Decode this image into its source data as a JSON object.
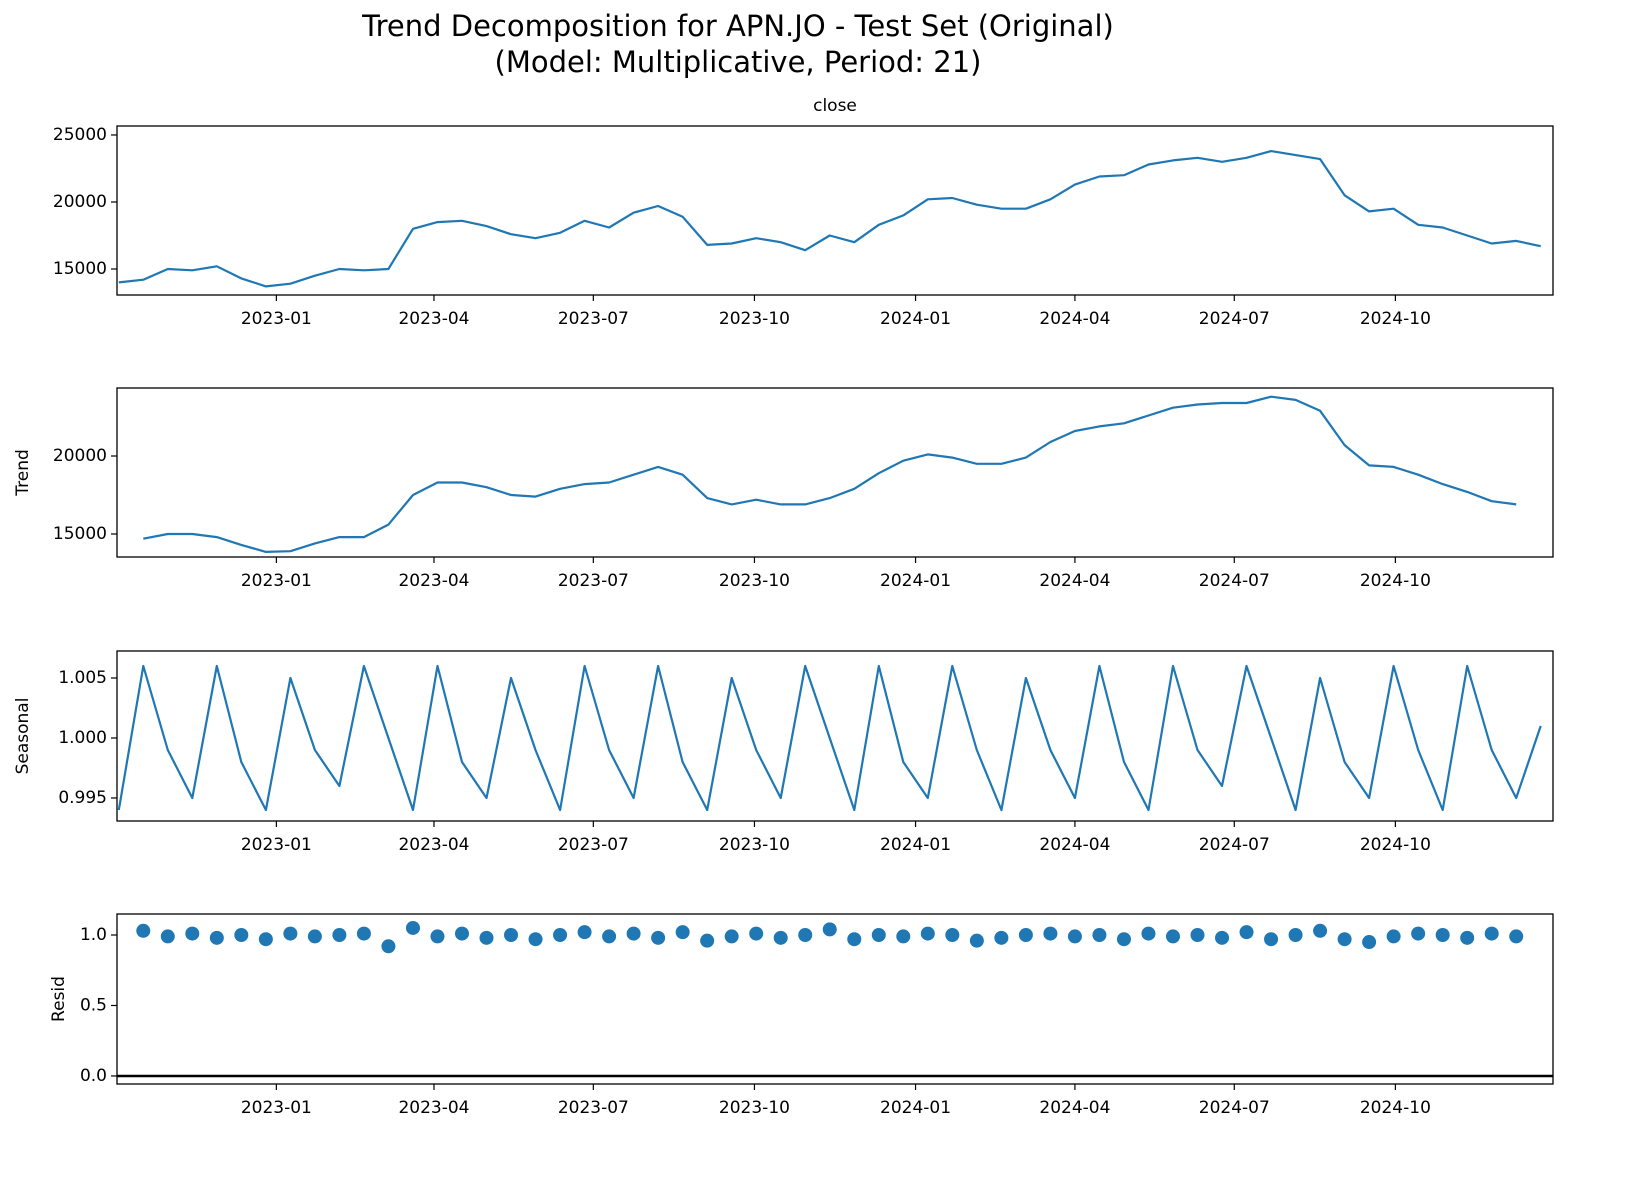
{
  "title": "Trend Decomposition for APN.JO - Test Set (Original)",
  "subtitle": "(Model: Multiplicative, Period: 21)",
  "chart_data": [
    {
      "type": "line",
      "title": "close",
      "color": "#1f77b4",
      "x": [
        "2022-10-03",
        "2022-10-17",
        "2022-10-31",
        "2022-11-14",
        "2022-11-28",
        "2022-12-12",
        "2022-12-26",
        "2023-01-09",
        "2023-01-23",
        "2023-02-06",
        "2023-02-20",
        "2023-03-06",
        "2023-03-20",
        "2023-04-03",
        "2023-04-17",
        "2023-05-01",
        "2023-05-15",
        "2023-05-29",
        "2023-06-12",
        "2023-06-26",
        "2023-07-10",
        "2023-07-24",
        "2023-08-07",
        "2023-08-21",
        "2023-09-04",
        "2023-09-18",
        "2023-10-02",
        "2023-10-16",
        "2023-10-30",
        "2023-11-13",
        "2023-11-27",
        "2023-12-11",
        "2023-12-25",
        "2024-01-08",
        "2024-01-22",
        "2024-02-05",
        "2024-02-19",
        "2024-03-04",
        "2024-03-18",
        "2024-04-01",
        "2024-04-15",
        "2024-04-29",
        "2024-05-13",
        "2024-05-27",
        "2024-06-10",
        "2024-06-24",
        "2024-07-08",
        "2024-07-22",
        "2024-08-05",
        "2024-08-19",
        "2024-09-02",
        "2024-09-16",
        "2024-09-30",
        "2024-10-14",
        "2024-10-28",
        "2024-11-11",
        "2024-11-25",
        "2024-12-09",
        "2024-12-23"
      ],
      "values": [
        14000,
        14200,
        15000,
        14900,
        15200,
        14300,
        13700,
        13900,
        14500,
        15000,
        14900,
        15000,
        18000,
        18500,
        18600,
        18200,
        17600,
        17300,
        17700,
        18600,
        18100,
        19200,
        19700,
        18900,
        16800,
        16900,
        17300,
        17000,
        16400,
        17500,
        17000,
        18300,
        19000,
        20200,
        20300,
        19800,
        19500,
        19500,
        20200,
        21300,
        21900,
        22000,
        22800,
        23100,
        23300,
        23000,
        23300,
        23800,
        23500,
        23200,
        20500,
        19300,
        19500,
        18300,
        18100,
        17500,
        16900,
        17100,
        16700
      ],
      "xlim": [
        "2022-10-02",
        "2024-12-30"
      ],
      "ylim": [
        13060,
        25670
      ],
      "yticks": [
        15000,
        20000,
        25000
      ],
      "xticks": [
        {
          "value": "2023-01-01",
          "label": "2023-01"
        },
        {
          "value": "2023-04-01",
          "label": "2023-04"
        },
        {
          "value": "2023-07-01",
          "label": "2023-07"
        },
        {
          "value": "2023-10-01",
          "label": "2023-10"
        },
        {
          "value": "2024-01-01",
          "label": "2024-01"
        },
        {
          "value": "2024-04-01",
          "label": "2024-04"
        },
        {
          "value": "2024-07-01",
          "label": "2024-07"
        },
        {
          "value": "2024-10-01",
          "label": "2024-10"
        }
      ]
    },
    {
      "type": "line",
      "ylabel": "Trend",
      "color": "#1f77b4",
      "x": [
        "2022-10-03",
        "2022-10-17",
        "2022-10-31",
        "2022-11-14",
        "2022-11-28",
        "2022-12-12",
        "2022-12-26",
        "2023-01-09",
        "2023-01-23",
        "2023-02-06",
        "2023-02-20",
        "2023-03-06",
        "2023-03-20",
        "2023-04-03",
        "2023-04-17",
        "2023-05-01",
        "2023-05-15",
        "2023-05-29",
        "2023-06-12",
        "2023-06-26",
        "2023-07-10",
        "2023-07-24",
        "2023-08-07",
        "2023-08-21",
        "2023-09-04",
        "2023-09-18",
        "2023-10-02",
        "2023-10-16",
        "2023-10-30",
        "2023-11-13",
        "2023-11-27",
        "2023-12-11",
        "2023-12-25",
        "2024-01-08",
        "2024-01-22",
        "2024-02-05",
        "2024-02-19",
        "2024-03-04",
        "2024-03-18",
        "2024-04-01",
        "2024-04-15",
        "2024-04-29",
        "2024-05-13",
        "2024-05-27",
        "2024-06-10",
        "2024-06-24",
        "2024-07-08",
        "2024-07-22",
        "2024-08-05",
        "2024-08-19",
        "2024-09-02",
        "2024-09-16",
        "2024-09-30",
        "2024-10-14",
        "2024-10-28",
        "2024-11-11",
        "2024-11-25",
        "2024-12-09",
        "2024-12-23"
      ],
      "values": [
        null,
        14700,
        15000,
        15000,
        14800,
        14300,
        13850,
        13900,
        14400,
        14800,
        14800,
        15600,
        17500,
        18300,
        18300,
        18000,
        17500,
        17400,
        17900,
        18200,
        18300,
        18800,
        19300,
        18800,
        17300,
        16900,
        17200,
        16900,
        16900,
        17300,
        17900,
        18900,
        19700,
        20100,
        19900,
        19500,
        19500,
        19900,
        20900,
        21600,
        21900,
        22100,
        22600,
        23100,
        23300,
        23400,
        23400,
        23800,
        23600,
        22900,
        20700,
        19400,
        19300,
        18800,
        18200,
        17700,
        17100,
        16900,
        null
      ],
      "xlim": [
        "2022-10-02",
        "2024-12-30"
      ],
      "ylim": [
        13525,
        24360
      ],
      "yticks": [
        15000,
        20000
      ],
      "xticks": [
        {
          "value": "2023-01-01",
          "label": "2023-01"
        },
        {
          "value": "2023-04-01",
          "label": "2023-04"
        },
        {
          "value": "2023-07-01",
          "label": "2023-07"
        },
        {
          "value": "2023-10-01",
          "label": "2023-10"
        },
        {
          "value": "2024-01-01",
          "label": "2024-01"
        },
        {
          "value": "2024-04-01",
          "label": "2024-04"
        },
        {
          "value": "2024-07-01",
          "label": "2024-07"
        },
        {
          "value": "2024-10-01",
          "label": "2024-10"
        }
      ]
    },
    {
      "type": "line",
      "ylabel": "Seasonal",
      "color": "#1f77b4",
      "x": [
        "2022-10-03",
        "2022-10-17",
        "2022-10-31",
        "2022-11-14",
        "2022-11-28",
        "2022-12-12",
        "2022-12-26",
        "2023-01-09",
        "2023-01-23",
        "2023-02-06",
        "2023-02-20",
        "2023-03-06",
        "2023-03-20",
        "2023-04-03",
        "2023-04-17",
        "2023-05-01",
        "2023-05-15",
        "2023-05-29",
        "2023-06-12",
        "2023-06-26",
        "2023-07-10",
        "2023-07-24",
        "2023-08-07",
        "2023-08-21",
        "2023-09-04",
        "2023-09-18",
        "2023-10-02",
        "2023-10-16",
        "2023-10-30",
        "2023-11-13",
        "2023-11-27",
        "2023-12-11",
        "2023-12-25",
        "2024-01-08",
        "2024-01-22",
        "2024-02-05",
        "2024-02-19",
        "2024-03-04",
        "2024-03-18",
        "2024-04-01",
        "2024-04-15",
        "2024-04-29",
        "2024-05-13",
        "2024-05-27",
        "2024-06-10",
        "2024-06-24",
        "2024-07-08",
        "2024-07-22",
        "2024-08-05",
        "2024-08-19",
        "2024-09-02",
        "2024-09-16",
        "2024-09-30",
        "2024-10-14",
        "2024-10-28",
        "2024-11-11",
        "2024-11-25",
        "2024-12-09",
        "2024-12-23"
      ],
      "values": [
        0.994,
        1.006,
        0.999,
        0.995,
        1.006,
        0.998,
        0.994,
        1.005,
        0.999,
        0.996,
        1.006,
        1.0,
        0.994,
        1.006,
        0.998,
        0.995,
        1.005,
        0.999,
        0.994,
        1.006,
        0.999,
        0.995,
        1.006,
        0.998,
        0.994,
        1.005,
        0.999,
        0.995,
        1.006,
        1.0,
        0.994,
        1.006,
        0.998,
        0.995,
        1.006,
        0.999,
        0.994,
        1.005,
        0.999,
        0.995,
        1.006,
        0.998,
        0.994,
        1.006,
        0.999,
        0.996,
        1.006,
        1.0,
        0.994,
        1.005,
        0.998,
        0.995,
        1.006,
        0.999,
        0.994,
        1.006,
        0.999,
        0.995,
        1.001
      ],
      "xlim": [
        "2022-10-02",
        "2024-12-30"
      ],
      "ylim": [
        0.99308,
        1.00725
      ],
      "yticks": [
        0.995,
        {
          "value": 1.0,
          "label": "1.000"
        },
        1.005
      ],
      "xticks": [
        {
          "value": "2023-01-01",
          "label": "2023-01"
        },
        {
          "value": "2023-04-01",
          "label": "2023-04"
        },
        {
          "value": "2023-07-01",
          "label": "2023-07"
        },
        {
          "value": "2023-10-01",
          "label": "2023-10"
        },
        {
          "value": "2024-01-01",
          "label": "2024-01"
        },
        {
          "value": "2024-04-01",
          "label": "2024-04"
        },
        {
          "value": "2024-07-01",
          "label": "2024-07"
        },
        {
          "value": "2024-10-01",
          "label": "2024-10"
        }
      ]
    },
    {
      "type": "scatter",
      "ylabel": "Resid",
      "color": "#1f77b4",
      "hline": 0,
      "x": [
        "2022-10-03",
        "2022-10-17",
        "2022-10-31",
        "2022-11-14",
        "2022-11-28",
        "2022-12-12",
        "2022-12-26",
        "2023-01-09",
        "2023-01-23",
        "2023-02-06",
        "2023-02-20",
        "2023-03-06",
        "2023-03-20",
        "2023-04-03",
        "2023-04-17",
        "2023-05-01",
        "2023-05-15",
        "2023-05-29",
        "2023-06-12",
        "2023-06-26",
        "2023-07-10",
        "2023-07-24",
        "2023-08-07",
        "2023-08-21",
        "2023-09-04",
        "2023-09-18",
        "2023-10-02",
        "2023-10-16",
        "2023-10-30",
        "2023-11-13",
        "2023-11-27",
        "2023-12-11",
        "2023-12-25",
        "2024-01-08",
        "2024-01-22",
        "2024-02-05",
        "2024-02-19",
        "2024-03-04",
        "2024-03-18",
        "2024-04-01",
        "2024-04-15",
        "2024-04-29",
        "2024-05-13",
        "2024-05-27",
        "2024-06-10",
        "2024-06-24",
        "2024-07-08",
        "2024-07-22",
        "2024-08-05",
        "2024-08-19",
        "2024-09-02",
        "2024-09-16",
        "2024-09-30",
        "2024-10-14",
        "2024-10-28",
        "2024-11-11",
        "2024-11-25",
        "2024-12-09",
        "2024-12-23"
      ],
      "values": [
        null,
        1.03,
        0.99,
        1.01,
        0.98,
        1.0,
        0.97,
        1.01,
        0.99,
        1.0,
        1.01,
        0.92,
        1.05,
        0.99,
        1.01,
        0.98,
        1.0,
        0.97,
        1.0,
        1.02,
        0.99,
        1.01,
        0.98,
        1.02,
        0.96,
        0.99,
        1.01,
        0.98,
        1.0,
        1.04,
        0.97,
        1.0,
        0.99,
        1.01,
        1.0,
        0.96,
        0.98,
        1.0,
        1.01,
        0.99,
        1.0,
        0.97,
        1.01,
        0.99,
        1.0,
        0.98,
        1.02,
        0.97,
        1.0,
        1.03,
        0.97,
        0.95,
        0.99,
        1.01,
        1.0,
        0.98,
        1.01,
        0.99,
        null
      ],
      "xlim": [
        "2022-10-02",
        "2024-12-30"
      ],
      "ylim": [
        -0.057,
        1.149
      ],
      "yticks": [
        {
          "value": 0,
          "label": "0.0"
        },
        0.5,
        {
          "value": 1,
          "label": "1.0"
        }
      ],
      "xticks": [
        {
          "value": "2023-01-01",
          "label": "2023-01"
        },
        {
          "value": "2023-04-01",
          "label": "2023-04"
        },
        {
          "value": "2023-07-01",
          "label": "2023-07"
        },
        {
          "value": "2023-10-01",
          "label": "2023-10"
        },
        {
          "value": "2024-01-01",
          "label": "2024-01"
        },
        {
          "value": "2024-04-01",
          "label": "2024-04"
        },
        {
          "value": "2024-07-01",
          "label": "2024-07"
        },
        {
          "value": "2024-10-01",
          "label": "2024-10"
        }
      ]
    }
  ]
}
